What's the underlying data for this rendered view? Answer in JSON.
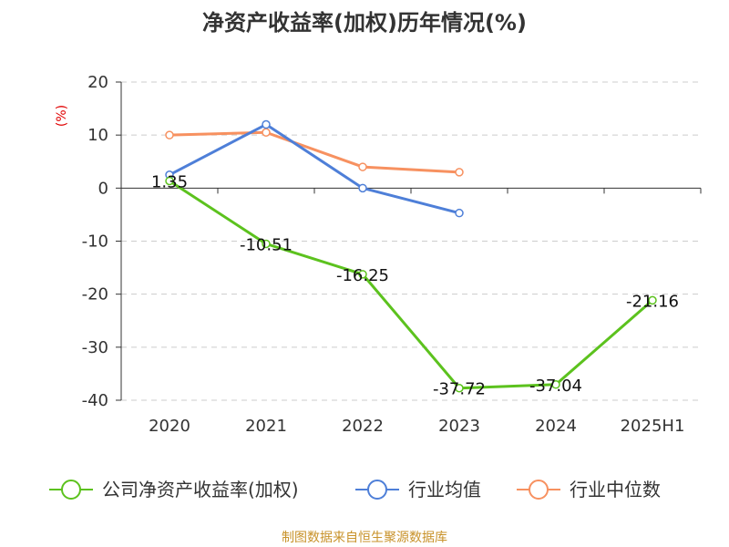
{
  "chart_data": {
    "type": "line",
    "title": "净资产收益率(加权)历年情况(%)",
    "ylabel": "(%)",
    "xlabel": "",
    "categories": [
      "2020",
      "2021",
      "2022",
      "2023",
      "2024",
      "2025H1"
    ],
    "ylim": [
      -40,
      20
    ],
    "yticks": [
      20,
      10,
      0,
      -10,
      -20,
      -30,
      -40
    ],
    "grid": "horizontal dashed",
    "legend_position": "bottom",
    "series": [
      {
        "name": "公司净资产收益率(加权)",
        "color": "#5cc21e",
        "values": [
          1.35,
          -10.51,
          -16.25,
          -37.72,
          -37.04,
          -21.16
        ],
        "labels": [
          "1.35",
          "-10.51",
          "-16.25",
          "-37.72",
          "-37.04",
          "-21.16"
        ]
      },
      {
        "name": "行业均值",
        "color": "#4e7fd8",
        "values": [
          2.5,
          12.0,
          0.0,
          -4.7,
          null,
          null
        ]
      },
      {
        "name": "行业中位数",
        "color": "#f79160",
        "values": [
          10.0,
          10.5,
          4.0,
          3.0,
          null,
          null
        ]
      }
    ]
  },
  "source": "制图数据来自恒生聚源数据库"
}
